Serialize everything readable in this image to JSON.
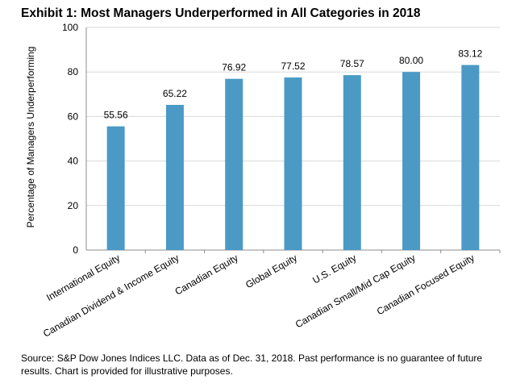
{
  "chart_data": {
    "type": "bar",
    "title": "Exhibit 1: Most Managers Underperformed in All Categories in 2018",
    "xlabel": "",
    "ylabel": "Percentage of Managers Underperforming",
    "ylim": [
      0,
      100
    ],
    "yticks": [
      0,
      20,
      40,
      60,
      80,
      100
    ],
    "grid": "horizontal",
    "categories": [
      "International Equity",
      "Canadian Dividend & Income Equity",
      "Canadian Equity",
      "Global Equity",
      "U.S. Equity",
      "Canadian Small/Mid Cap Equity",
      "Canadian Focused Equity"
    ],
    "values": [
      55.56,
      65.22,
      76.92,
      77.52,
      78.57,
      80.0,
      83.12
    ],
    "data_labels": [
      "55.56",
      "65.22",
      "76.92",
      "77.52",
      "78.57",
      "80.00",
      "83.12"
    ],
    "bar_color": "#4a9ac5"
  },
  "source_note": "Source: S&P Dow Jones Indices LLC.  Data as of Dec. 31, 2018.  Past performance is no guarantee of future results.  Chart is provided for illustrative purposes."
}
